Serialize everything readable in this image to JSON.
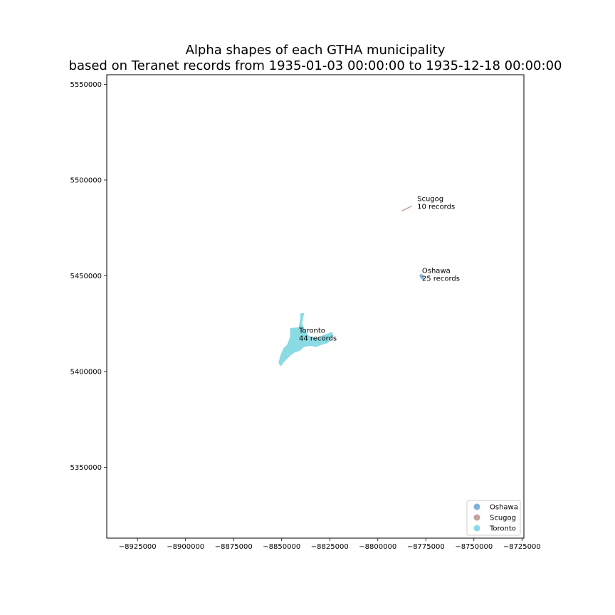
{
  "chart_data": {
    "type": "area",
    "title": [
      "Alpha shapes of each GTHA municipality",
      "based on Teranet records from 1935-01-03 00:00:00 to 1935-12-18 00:00:00"
    ],
    "xlabel": "",
    "ylabel": "",
    "xlim": [
      -8941000,
      -8724000
    ],
    "ylim": [
      5313000,
      5555000
    ],
    "grid": false,
    "legend_position": "bottom-right",
    "x_ticks": [
      -8925000,
      -8900000,
      -8875000,
      -8850000,
      -8825000,
      -8800000,
      -8775000,
      -8750000,
      -8725000
    ],
    "x_tick_labels": [
      "−8925000",
      "−8900000",
      "−8875000",
      "−8850000",
      "−8825000",
      "−8800000",
      "−8775000",
      "−8750000",
      "−8725000"
    ],
    "y_ticks": [
      5350000,
      5400000,
      5450000,
      5500000,
      5550000
    ],
    "y_tick_labels": [
      "5350000",
      "5400000",
      "5450000",
      "5500000",
      "5550000"
    ],
    "series": [
      {
        "name": "Oshawa",
        "color": "#7fb2d5",
        "label": [
          "Oshawa",
          "25 records"
        ],
        "label_anchor": [
          -8777000,
          5451500
        ],
        "polygons": [
          [
            [
              -8778200,
              5450200
            ],
            [
              -8777300,
              5450900
            ],
            [
              -8776600,
              5450100
            ],
            [
              -8776300,
              5449000
            ],
            [
              -8775800,
              5448000
            ],
            [
              -8776900,
              5448300
            ],
            [
              -8777800,
              5449100
            ]
          ]
        ]
      },
      {
        "name": "Scugog",
        "color": "#c4a49c",
        "label": [
          "Scugog",
          "10 records"
        ],
        "label_anchor": [
          -8779500,
          5489000
        ],
        "polygons": [
          [
            [
              -8787500,
              5484000
            ],
            [
              -8782500,
              5486500
            ],
            [
              -8782300,
              5486300
            ],
            [
              -8787300,
              5483800
            ]
          ]
        ]
      },
      {
        "name": "Toronto",
        "color": "#8adbe3",
        "label": [
          "Toronto",
          "44 records"
        ],
        "label_anchor": [
          -8841000,
          5420300
        ],
        "polygons": [
          [
            [
              -8840500,
              5430000
            ],
            [
              -8838500,
              5430500
            ],
            [
              -8839500,
              5425000
            ],
            [
              -8838500,
              5422500
            ],
            [
              -8836500,
              5419000
            ],
            [
              -8833000,
              5417000
            ],
            [
              -8828000,
              5419000
            ],
            [
              -8823800,
              5420500
            ],
            [
              -8823500,
              5418500
            ],
            [
              -8826000,
              5415000
            ],
            [
              -8829500,
              5414000
            ],
            [
              -8832000,
              5413000
            ],
            [
              -8835000,
              5413500
            ],
            [
              -8838500,
              5413000
            ],
            [
              -8840500,
              5411000
            ],
            [
              -8842000,
              5410500
            ],
            [
              -8843500,
              5410000
            ],
            [
              -8845500,
              5408500
            ],
            [
              -8848000,
              5406000
            ],
            [
              -8850500,
              5403000
            ],
            [
              -8851500,
              5404500
            ],
            [
              -8850500,
              5408500
            ],
            [
              -8849000,
              5412000
            ],
            [
              -8847000,
              5414000
            ],
            [
              -8845500,
              5418000
            ],
            [
              -8845500,
              5422500
            ],
            [
              -8841000,
              5423000
            ],
            [
              -8840000,
              5429000
            ]
          ]
        ]
      }
    ]
  }
}
